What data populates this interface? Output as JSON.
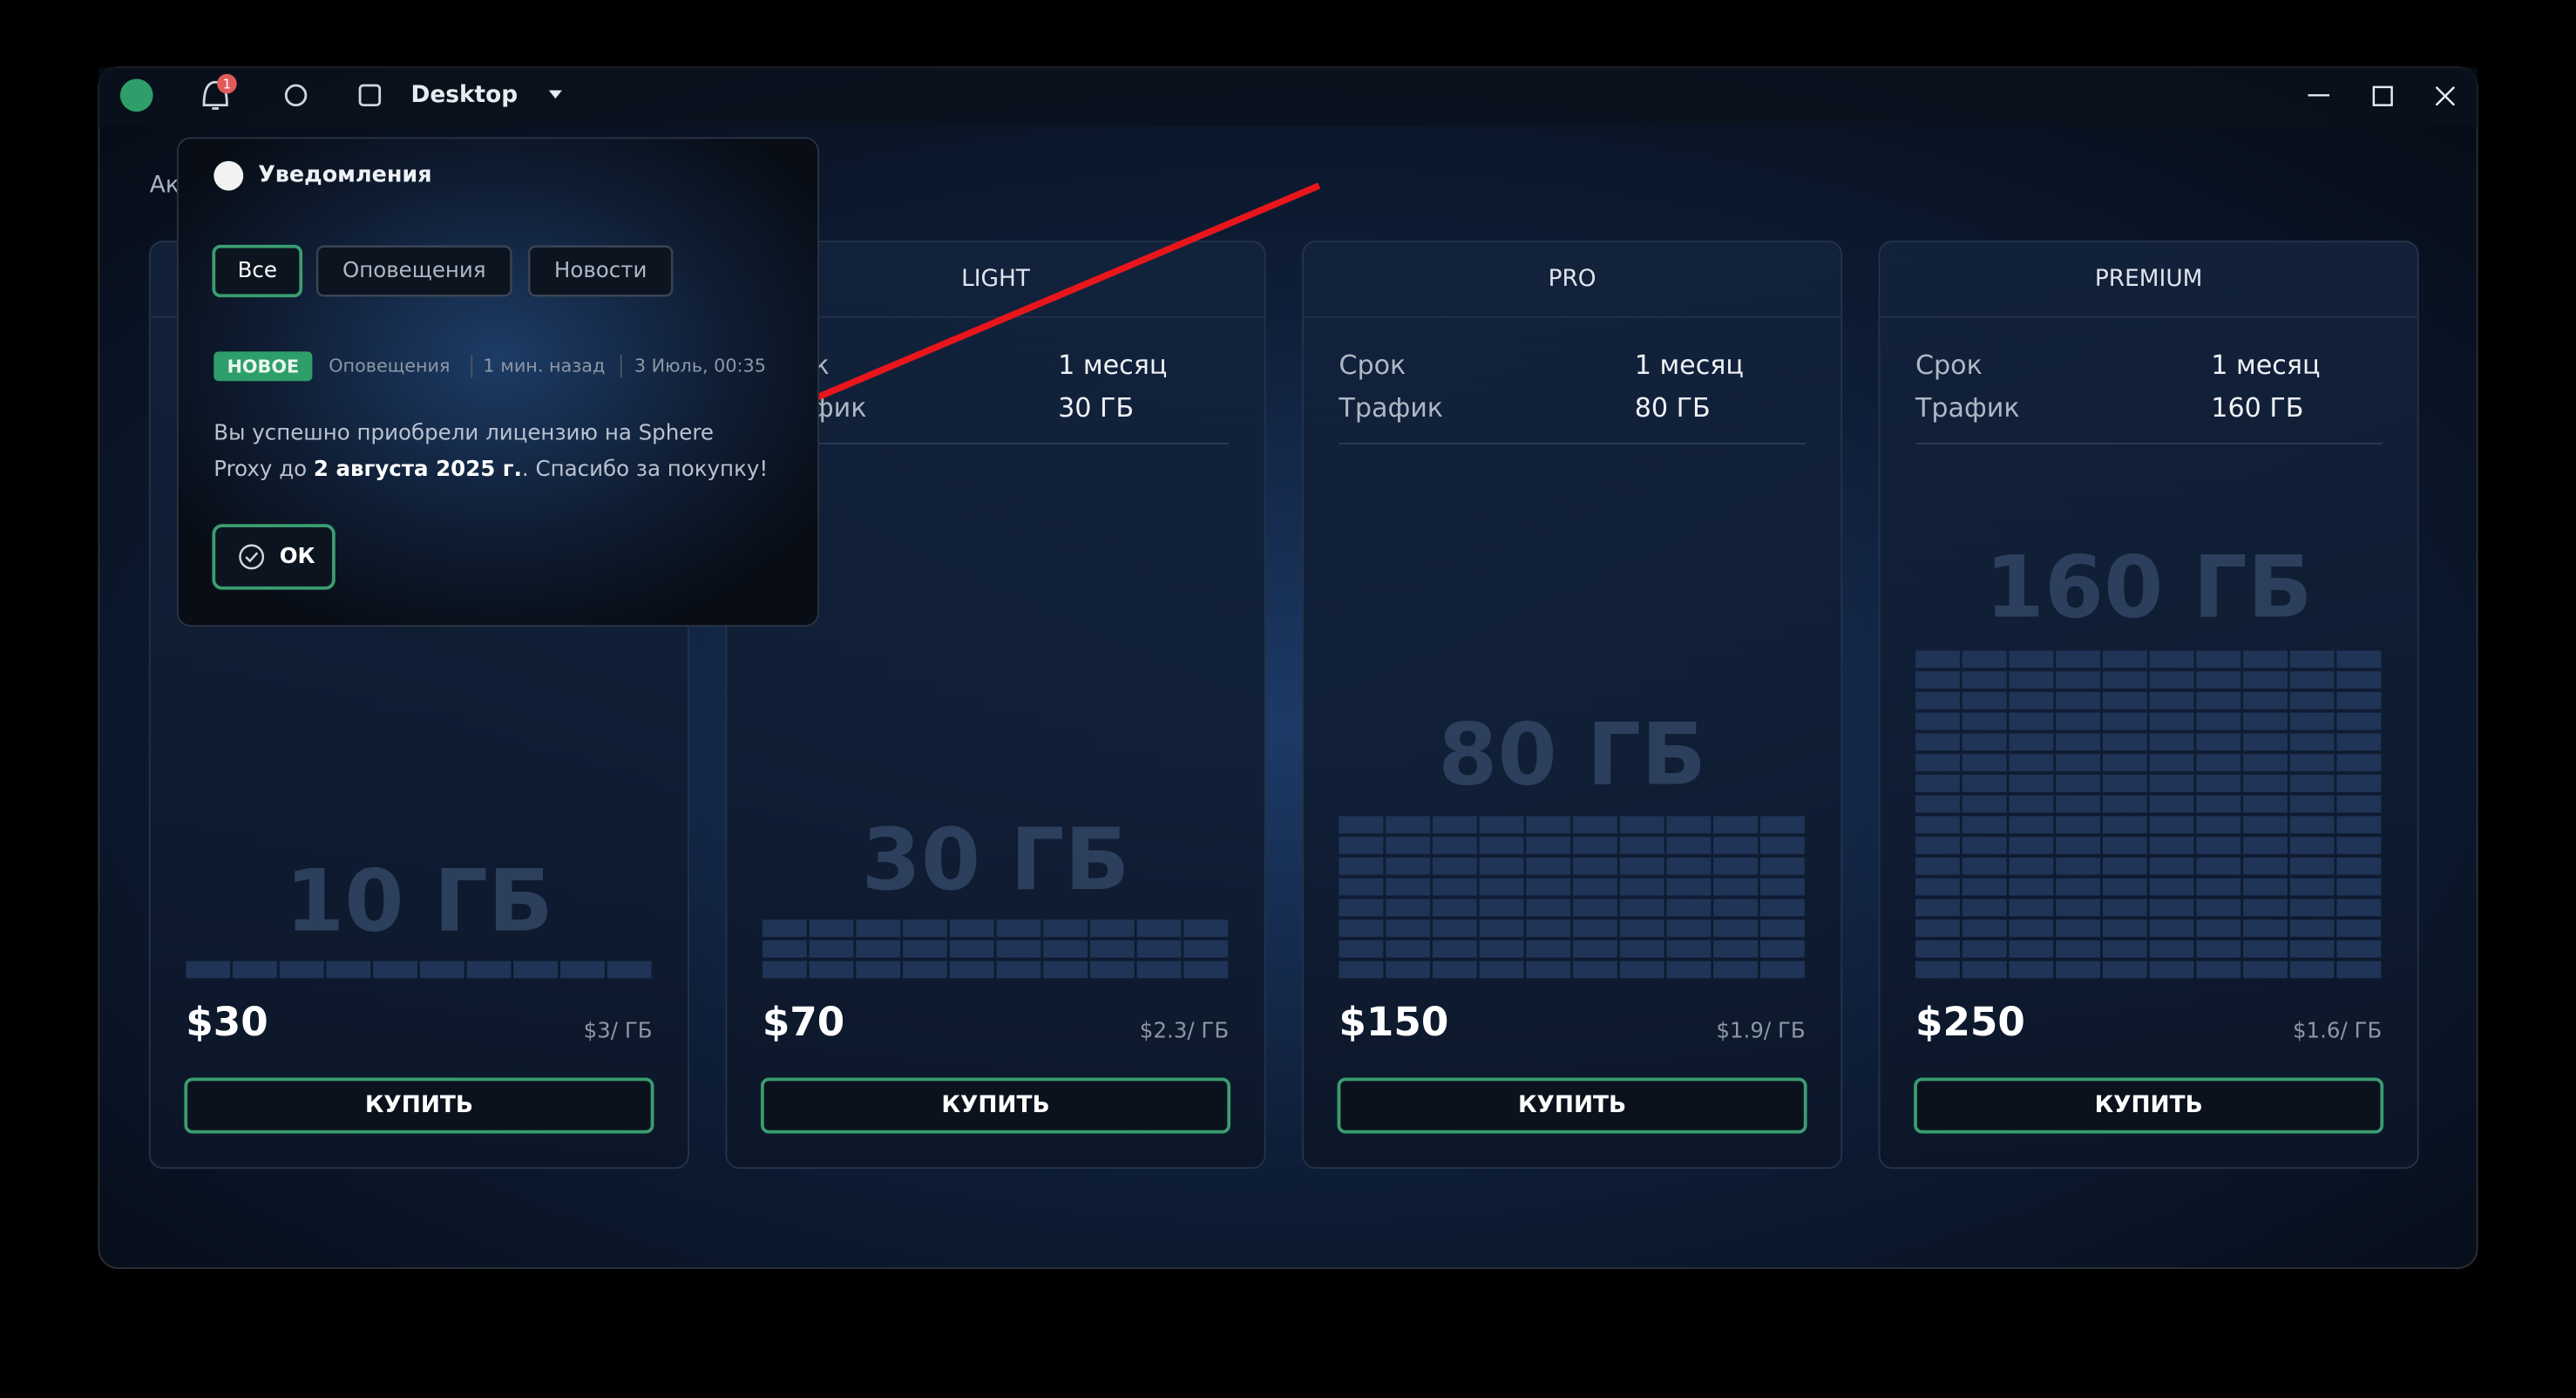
{
  "header": {
    "app": "Desktop",
    "notification_count": 1
  },
  "background_text": "Ак",
  "notifications": {
    "title": "Уведомления",
    "tabs": [
      "Все",
      "Оповещения",
      "Новости"
    ],
    "item": {
      "badge": "НОВОЕ",
      "category": "Оповещения",
      "time": "1 мин. назад",
      "date": "3 Июль, 00:35",
      "message": {
        "line1": "Вы успешно приобрели лицензию на Sphere",
        "line2_start": "Proxy до ",
        "line2_bold": "2 августа 2025 г.",
        "line2_end": ". Спасибо за покупку!"
      }
    },
    "button": "ОК"
  },
  "plans": [
    {
      "traffic": "10 ГБ",
      "price": "$30",
      "per_gb": "$3/ ГБ",
      "button": "КУПИТЬ"
    },
    {
      "name": "LIGHT",
      "rows": [
        {
          "label": "Срок",
          "value": "1 месяц"
        },
        {
          "label": "Трафик",
          "value": "30 ГБ"
        }
      ],
      "traffic": "30 ГБ",
      "price": "$70",
      "per_gb": "$2.3/ ГБ",
      "button": "КУПИТЬ"
    },
    {
      "name": "PRO",
      "rows": [
        {
          "label": "Срок",
          "value": "1 месяц"
        },
        {
          "label": "Трафик",
          "value": "80 ГБ"
        }
      ],
      "traffic": "80 ГБ",
      "price": "$150",
      "per_gb": "$1.9/ ГБ",
      "button": "КУПИТЬ"
    },
    {
      "name": "PREMIUM",
      "rows": [
        {
          "label": "Срок",
          "value": "1 месяц"
        },
        {
          "label": "Трафик",
          "value": "160 ГБ"
        }
      ],
      "traffic": "160 ГБ",
      "price": "$250",
      "per_gb": "$1.6/ ГБ",
      "button": "КУПИТЬ"
    }
  ]
}
